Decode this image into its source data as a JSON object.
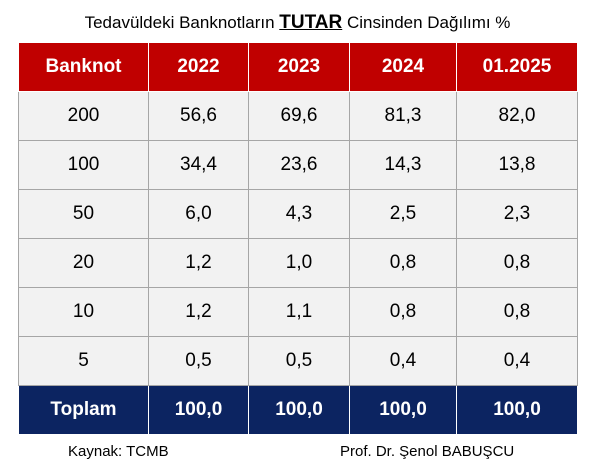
{
  "title": {
    "before": "Tedavüldeki Banknotların ",
    "emphasis": "TUTAR",
    "after": " Cinsinden Dağılımı %"
  },
  "table": {
    "header": [
      "Banknot",
      "2022",
      "2023",
      "2024",
      "01.2025"
    ],
    "rows": [
      [
        "200",
        "56,6",
        "69,6",
        "81,3",
        "82,0"
      ],
      [
        "100",
        "34,4",
        "23,6",
        "14,3",
        "13,8"
      ],
      [
        "50",
        "6,0",
        "4,3",
        "2,5",
        "2,3"
      ],
      [
        "20",
        "1,2",
        "1,0",
        "0,8",
        "0,8"
      ],
      [
        "10",
        "1,2",
        "1,1",
        "0,8",
        "0,8"
      ],
      [
        "5",
        "0,5",
        "0,5",
        "0,4",
        "0,4"
      ]
    ],
    "total": [
      "Toplam",
      "100,0",
      "100,0",
      "100,0",
      "100,0"
    ]
  },
  "footer": {
    "source": "Kaynak: TCMB",
    "author": "Prof. Dr. Şenol BABUŞCU"
  }
}
